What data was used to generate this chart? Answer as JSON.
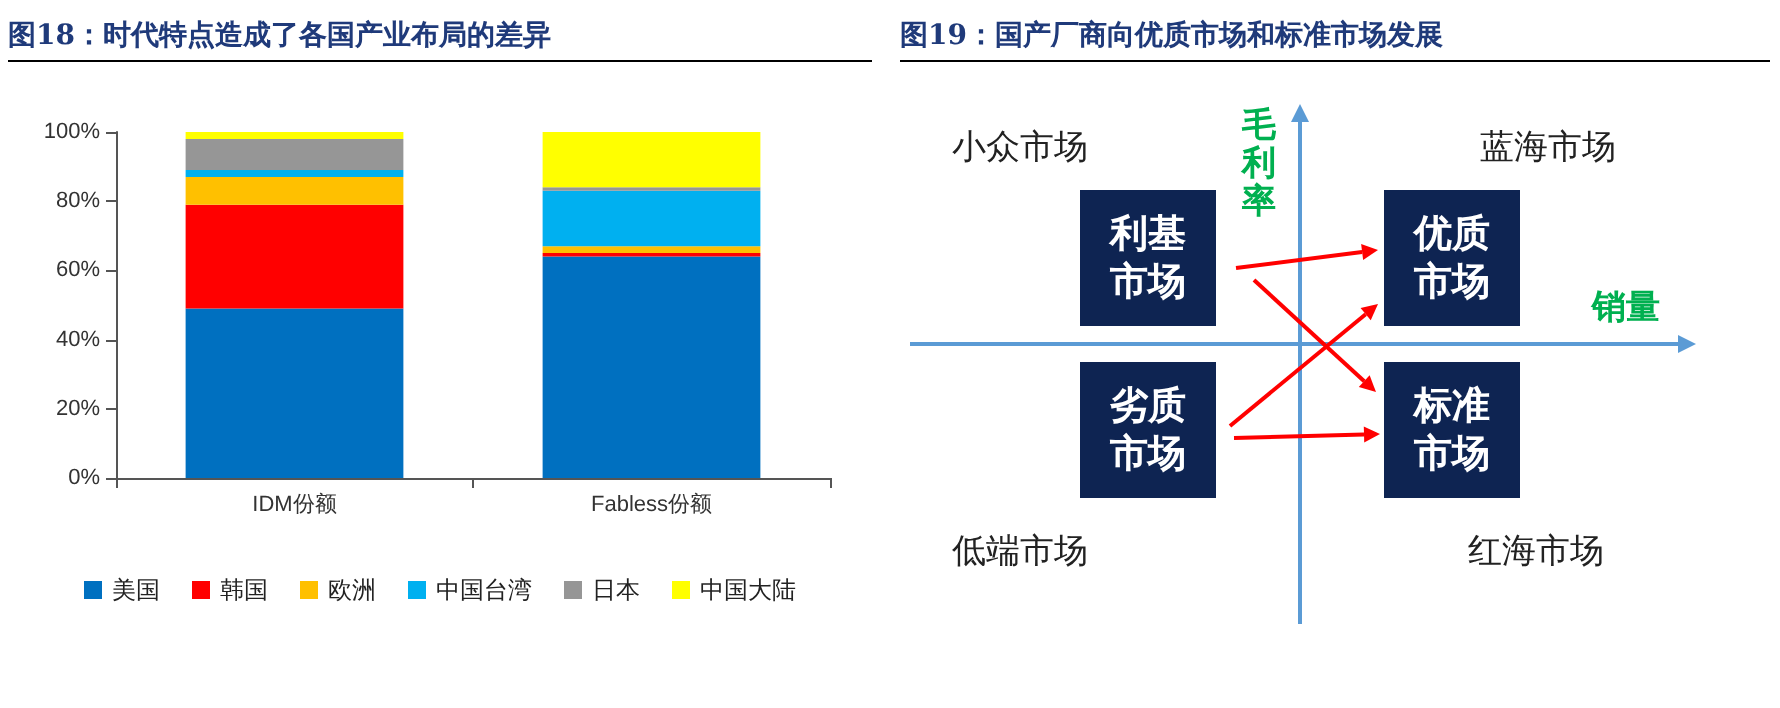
{
  "chart_data": [
    {
      "type": "bar",
      "title": "图18：时代特点造成了各国产业布局的差异",
      "stacked": true,
      "categories": [
        "IDM份额",
        "Fabless份额"
      ],
      "series": [
        {
          "name": "美国",
          "color": "#0070c0",
          "values": [
            49,
            64
          ]
        },
        {
          "name": "韩国",
          "color": "#ff0000",
          "values": [
            30,
            1
          ]
        },
        {
          "name": "欧洲",
          "color": "#ffc000",
          "values": [
            8,
            2
          ]
        },
        {
          "name": "中国台湾",
          "color": "#00b0f0",
          "values": [
            2,
            16
          ]
        },
        {
          "name": "日本",
          "color": "#969696",
          "values": [
            9,
            1
          ]
        },
        {
          "name": "中国大陆",
          "color": "#ffff00",
          "values": [
            2,
            16
          ]
        }
      ],
      "ylim": [
        0,
        100
      ],
      "yticks": [
        {
          "value": 0,
          "label": "0%"
        },
        {
          "value": 20,
          "label": "20%"
        },
        {
          "value": 40,
          "label": "40%"
        },
        {
          "value": 60,
          "label": "60%"
        },
        {
          "value": 80,
          "label": "80%"
        },
        {
          "value": 100,
          "label": "100%"
        }
      ],
      "grid": false,
      "legend": "bottom"
    },
    {
      "type": "other",
      "title": "图19：国产厂商向优质市场和标准市场发展",
      "xlabel": "销量",
      "ylabel": "毛利率",
      "annotations": [
        "小众市场",
        "蓝海市场",
        "利基市场",
        "优质市场",
        "劣质市场",
        "标准市场",
        "低端市场",
        "红海市场"
      ]
    }
  ]
}
